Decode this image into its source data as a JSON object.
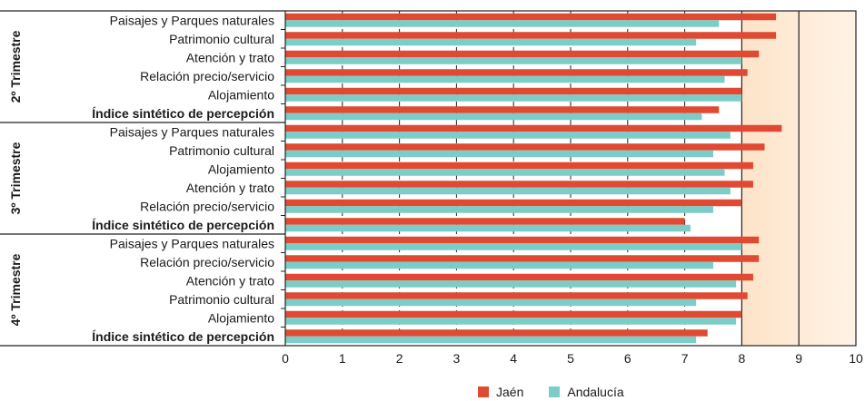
{
  "chart_data": {
    "type": "bar",
    "orientation": "horizontal",
    "xlim": [
      0,
      10
    ],
    "xticks": [
      "0",
      "1",
      "2",
      "3",
      "4",
      "5",
      "6",
      "7",
      "8",
      "9",
      "10"
    ],
    "series": [
      {
        "name": "Jaén",
        "color": "#e04a32"
      },
      {
        "name": "Andalucía",
        "color": "#7ccdc8"
      }
    ],
    "groups": [
      {
        "label": "2º Trimestre",
        "rows": [
          {
            "label": "Paisajes y Parques naturales",
            "bold": false,
            "values": [
              8.6,
              7.6
            ]
          },
          {
            "label": "Patrimonio cultural",
            "bold": false,
            "values": [
              8.6,
              7.2
            ]
          },
          {
            "label": "Atención y trato",
            "bold": false,
            "values": [
              8.3,
              8.0
            ]
          },
          {
            "label": "Relación precio/servicio",
            "bold": false,
            "values": [
              8.1,
              7.7
            ]
          },
          {
            "label": "Alojamiento",
            "bold": false,
            "values": [
              8.0,
              8.0
            ]
          },
          {
            "label": "Índice sintético de percepción",
            "bold": true,
            "values": [
              7.6,
              7.3
            ]
          }
        ]
      },
      {
        "label": "3º Trimestre",
        "rows": [
          {
            "label": "Paisajes y Parques naturales",
            "bold": false,
            "values": [
              8.7,
              7.8
            ]
          },
          {
            "label": "Patrimonio cultural",
            "bold": false,
            "values": [
              8.4,
              7.5
            ]
          },
          {
            "label": "Alojamiento",
            "bold": false,
            "values": [
              8.2,
              7.7
            ]
          },
          {
            "label": "Atención y trato",
            "bold": false,
            "values": [
              8.2,
              7.8
            ]
          },
          {
            "label": "Relación precio/servicio",
            "bold": false,
            "values": [
              8.0,
              7.5
            ]
          },
          {
            "label": "Índice sintético de percepción",
            "bold": true,
            "values": [
              7.0,
              7.1
            ]
          }
        ]
      },
      {
        "label": "4º Trimestre",
        "rows": [
          {
            "label": "Paisajes y Parques naturales",
            "bold": false,
            "values": [
              8.3,
              8.0
            ]
          },
          {
            "label": "Relación precio/servicio",
            "bold": false,
            "values": [
              8.3,
              7.5
            ]
          },
          {
            "label": "Atención y trato",
            "bold": false,
            "values": [
              8.2,
              7.9
            ]
          },
          {
            "label": "Patrimonio cultural",
            "bold": false,
            "values": [
              8.1,
              7.2
            ]
          },
          {
            "label": "Alojamiento",
            "bold": false,
            "values": [
              8.0,
              7.9
            ]
          },
          {
            "label": "Índice sintético de percepción",
            "bold": true,
            "values": [
              7.4,
              7.2
            ]
          }
        ]
      }
    ],
    "grid": true,
    "legend": "bottom"
  }
}
